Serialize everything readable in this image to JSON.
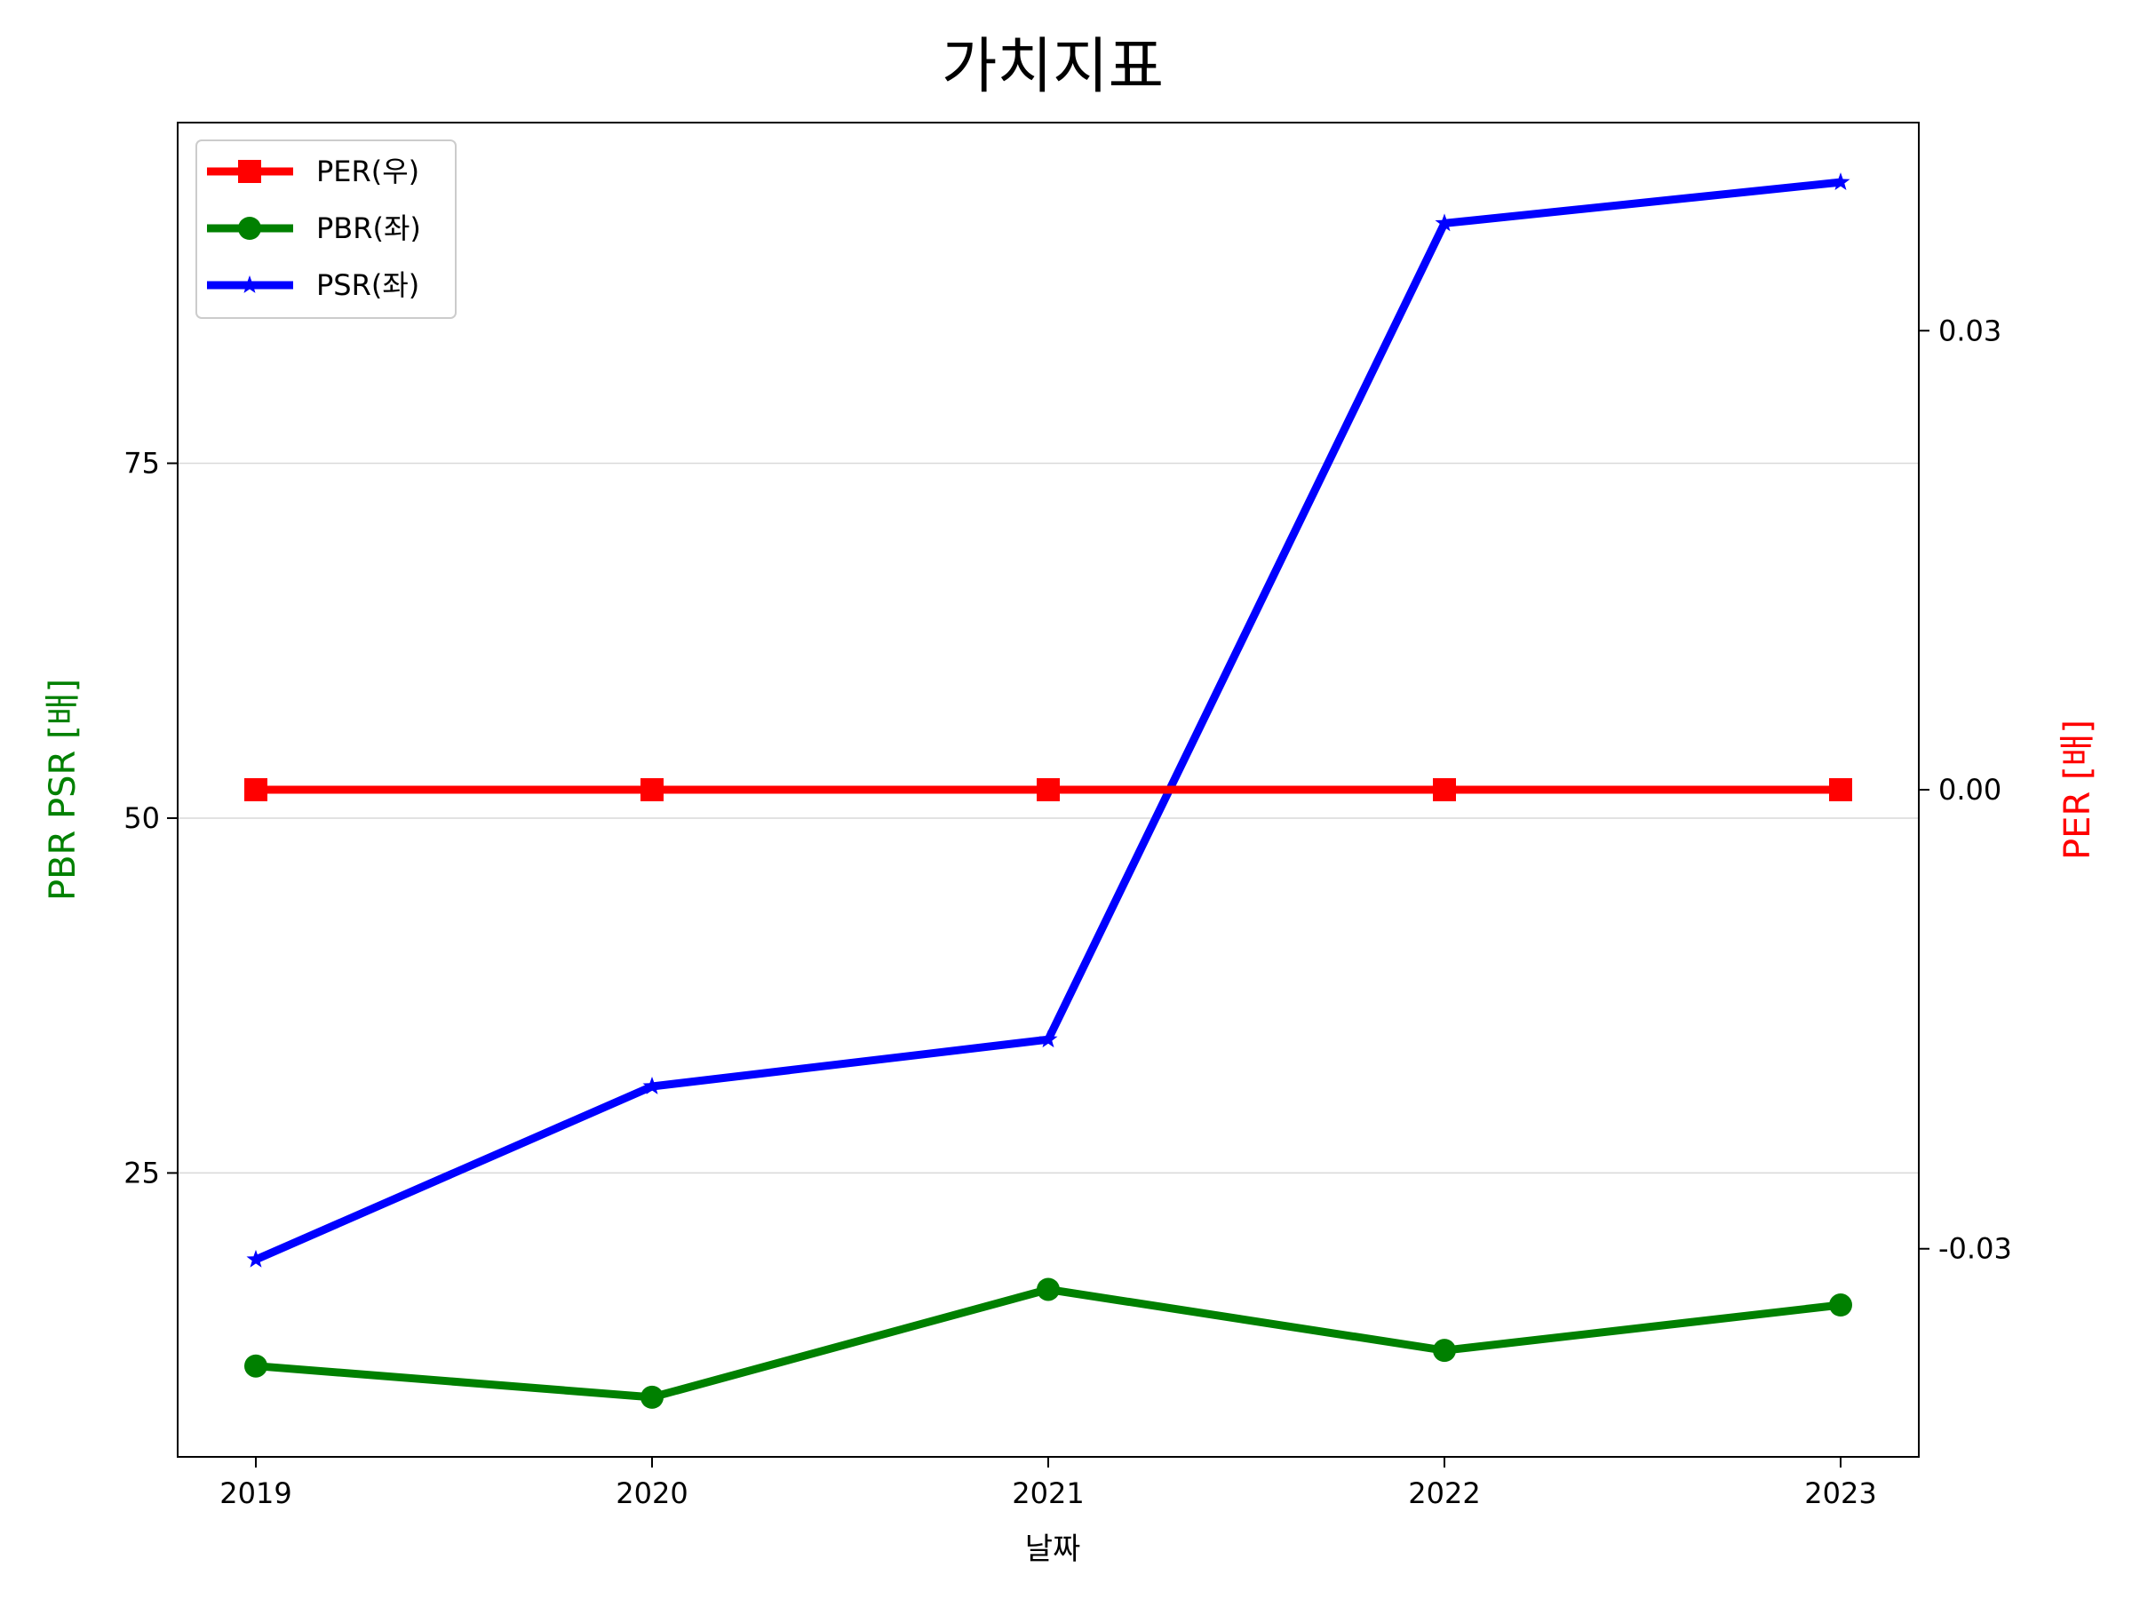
{
  "chart_data": {
    "type": "line",
    "title": "가치지표",
    "xlabel": "날짜",
    "ylabel_left": "PBR PSR [배]",
    "ylabel_right": "PER [배]",
    "x": [
      "2019",
      "2020",
      "2021",
      "2022",
      "2023"
    ],
    "ylim_left": [
      5,
      99
    ],
    "yticks_left": [
      "25",
      "50",
      "75"
    ],
    "ylim_right": [
      -0.0436,
      0.0436
    ],
    "yticks_right": [
      "0.03",
      "0.00",
      "-0.03"
    ],
    "grid": true,
    "legend_position": "top-left",
    "series": [
      {
        "name": "PER(우)",
        "axis": "right",
        "color": "#ff0000",
        "marker": "square",
        "values": [
          0,
          0,
          0,
          0,
          0
        ]
      },
      {
        "name": "PBR(좌)",
        "axis": "left",
        "color": "#008000",
        "marker": "circle",
        "values": [
          11.4,
          9.2,
          16.8,
          12.5,
          15.7
        ]
      },
      {
        "name": "PSR(좌)",
        "axis": "left",
        "color": "#0000ff",
        "marker": "star",
        "values": [
          18.9,
          31.1,
          34.4,
          91.9,
          94.8
        ]
      }
    ]
  }
}
